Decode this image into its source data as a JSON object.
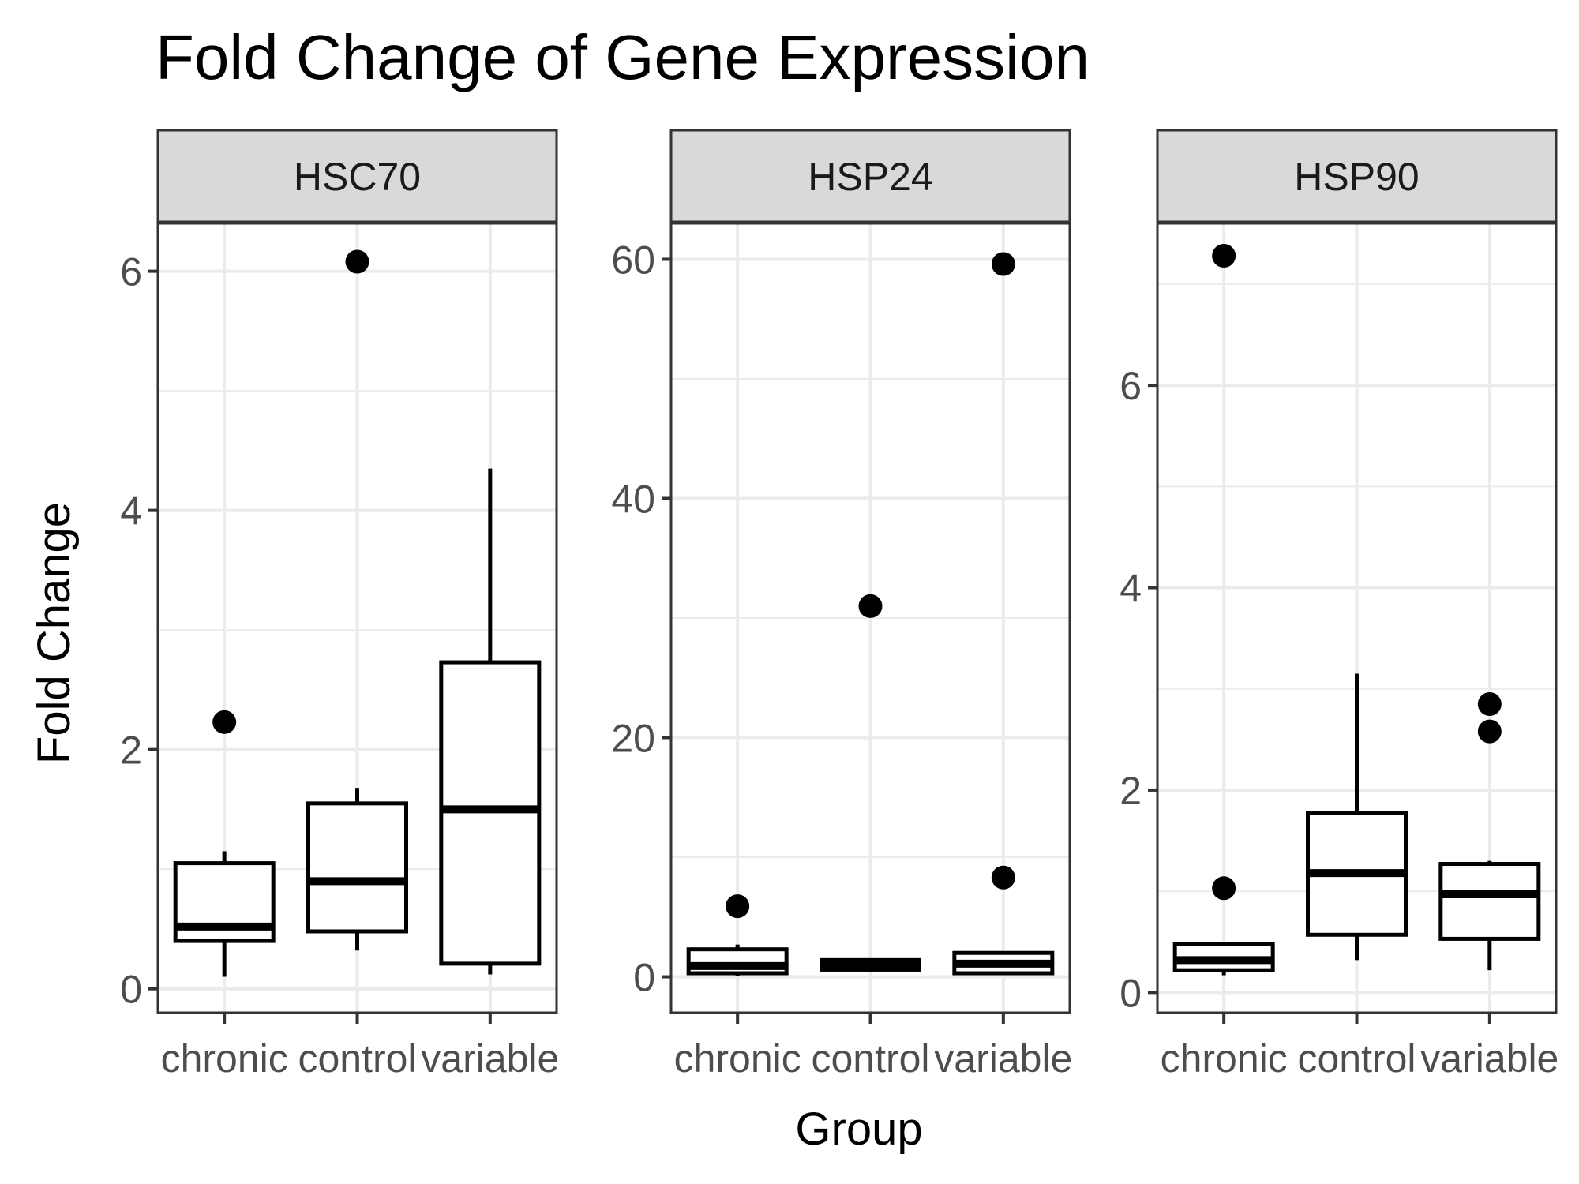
{
  "chart_data": {
    "type": "box",
    "title": "Fold Change of Gene Expression",
    "xlabel": "Group",
    "ylabel": "Fold Change",
    "categories": [
      "chronic",
      "control",
      "variable"
    ],
    "grid": true,
    "colors": {
      "box_stroke": "#000000",
      "grid": "#ebebeb",
      "strip_fill": "#d9d9d9",
      "panel_border": "#333333",
      "tick_label": "#4d4d4d"
    },
    "facets": [
      {
        "name": "HSC70",
        "ylim": [
          -0.2,
          6.4
        ],
        "yticks": [
          0,
          2,
          4,
          6
        ],
        "boxes": [
          {
            "group": "chronic",
            "min": 0.1,
            "q1": 0.4,
            "median": 0.52,
            "q3": 1.05,
            "max": 1.15,
            "outliers": [
              2.23
            ]
          },
          {
            "group": "control",
            "min": 0.32,
            "q1": 0.48,
            "median": 0.9,
            "q3": 1.55,
            "max": 1.68,
            "outliers": [
              6.08
            ]
          },
          {
            "group": "variable",
            "min": 0.12,
            "q1": 0.21,
            "median": 1.5,
            "q3": 2.73,
            "max": 4.35,
            "outliers": []
          }
        ]
      },
      {
        "name": "HSP24",
        "ylim": [
          -3,
          63
        ],
        "yticks": [
          0,
          20,
          40,
          60
        ],
        "boxes": [
          {
            "group": "chronic",
            "min": 0.1,
            "q1": 0.3,
            "median": 0.9,
            "q3": 2.3,
            "max": 2.7,
            "outliers": [
              5.9
            ]
          },
          {
            "group": "control",
            "min": 0.5,
            "q1": 0.6,
            "median": 1.0,
            "q3": 1.4,
            "max": 1.5,
            "outliers": [
              31.0
            ]
          },
          {
            "group": "variable",
            "min": 0.2,
            "q1": 0.3,
            "median": 1.1,
            "q3": 2.0,
            "max": 2.1,
            "outliers": [
              8.3,
              59.6
            ]
          }
        ]
      },
      {
        "name": "HSP90",
        "ylim": [
          -0.2,
          7.6
        ],
        "yticks": [
          0,
          2,
          4,
          6
        ],
        "boxes": [
          {
            "group": "chronic",
            "min": 0.17,
            "q1": 0.22,
            "median": 0.32,
            "q3": 0.48,
            "max": 0.5,
            "outliers": [
              1.03,
              7.28
            ]
          },
          {
            "group": "control",
            "min": 0.32,
            "q1": 0.57,
            "median": 1.18,
            "q3": 1.77,
            "max": 3.15,
            "outliers": []
          },
          {
            "group": "variable",
            "min": 0.22,
            "q1": 0.53,
            "median": 0.97,
            "q3": 1.27,
            "max": 1.3,
            "outliers": [
              2.58,
              2.85
            ]
          }
        ]
      }
    ]
  }
}
